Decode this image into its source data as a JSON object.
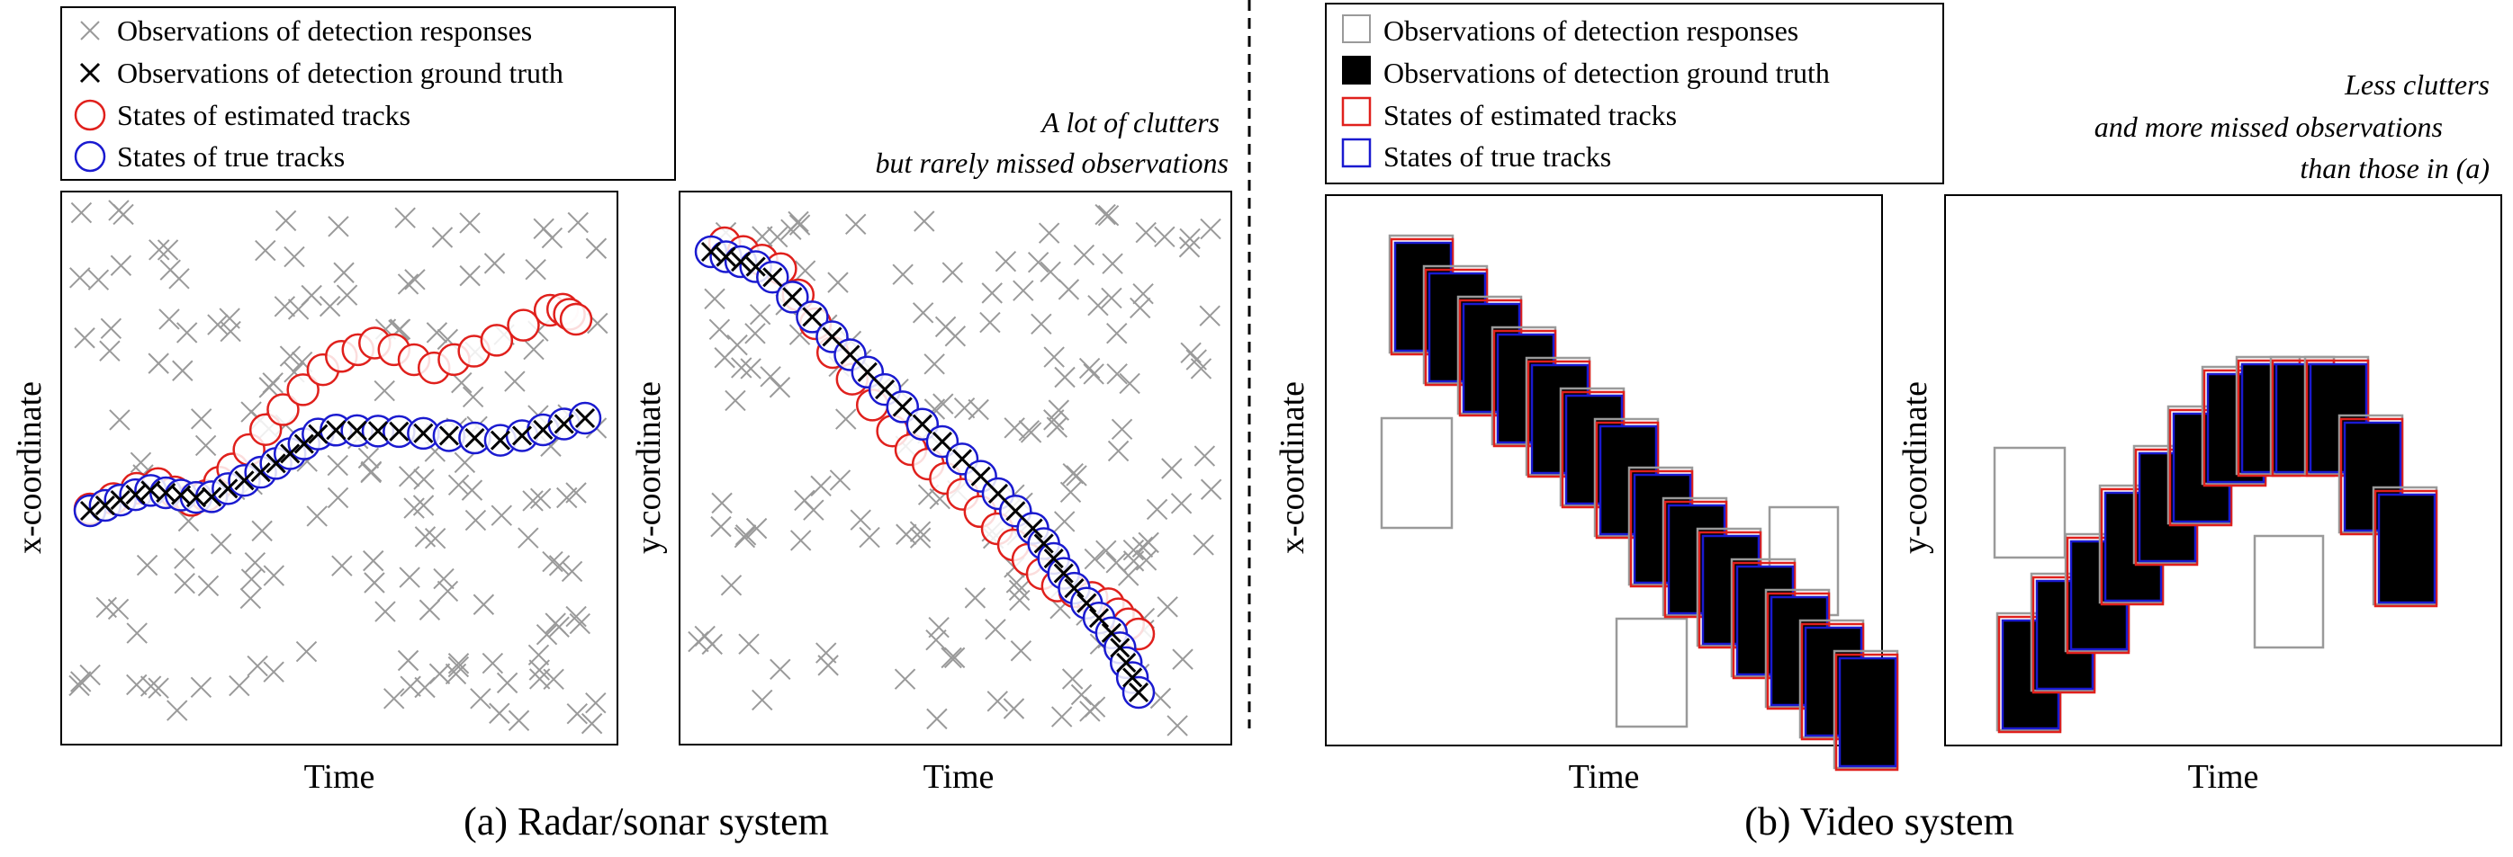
{
  "panel_a": {
    "caption": "(a) Radar/sonar system",
    "note_lines": [
      "A lot of clutters",
      "but rarely missed observations"
    ],
    "legend": [
      {
        "label": "Observations of detection responses",
        "symbol": "cross-light"
      },
      {
        "label": "Observations of detection ground truth",
        "symbol": "cross-dark"
      },
      {
        "label": "States of estimated tracks",
        "symbol": "circle-red"
      },
      {
        "label": "States of true tracks",
        "symbol": "circle-blue"
      }
    ],
    "plots": [
      {
        "ylabel": "x-coordinate",
        "xlabel": "Time"
      },
      {
        "ylabel": "y-coordinate",
        "xlabel": "Time"
      }
    ]
  },
  "panel_b": {
    "caption": "(b) Video system",
    "note_lines": [
      "Less clutters",
      "and more missed observations",
      "than those in (a)"
    ],
    "legend": [
      {
        "label": "Observations of detection responses",
        "symbol": "box-light"
      },
      {
        "label": "Observations of detection ground truth",
        "symbol": "box-filled"
      },
      {
        "label": "States of estimated tracks",
        "symbol": "box-red"
      },
      {
        "label": "States of true tracks",
        "symbol": "box-blue"
      }
    ],
    "plots": [
      {
        "ylabel": "x-coordinate",
        "xlabel": "Time"
      },
      {
        "ylabel": "y-coordinate",
        "xlabel": "Time"
      }
    ]
  },
  "colors": {
    "clutter": "#9a9a9a",
    "ground_truth": "#000000",
    "estimated": "#e0201c",
    "true": "#1a1ad0",
    "frame": "#000000"
  }
}
